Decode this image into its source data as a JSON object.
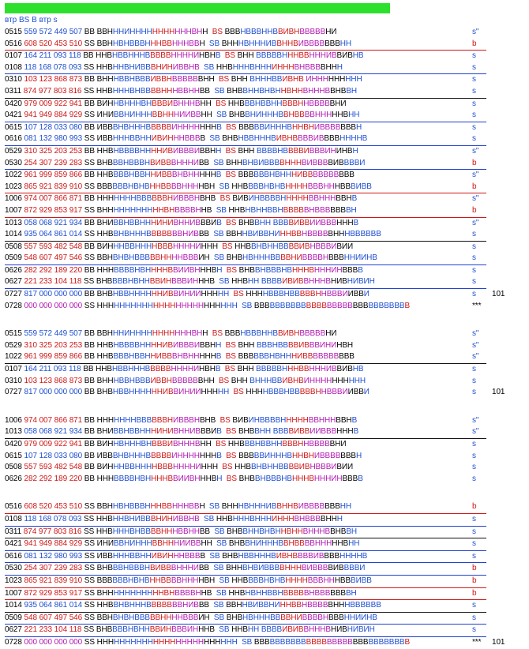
{
  "header": {
    "title": "втр BS B втр s"
  },
  "colors": {
    "bar": "#2ee02e",
    "blue": "#1f4fd0",
    "red": "#d01818",
    "magenta": "#b21ab2"
  },
  "groups": [
    {
      "lines": [
        {
          "id": "0515",
          "n": "559 572 449 507",
          "nc": "b",
          "t": "BB",
          "s": "ВВНННИНННННННННННВНН",
          "s2": "BS",
          "p": "ВВВНВВВННВВИВНВВВВВНИ",
          "tail": "s\"",
          "ul": false
        },
        {
          "id": "0516",
          "n": "608 520 453 510",
          "nc": "r",
          "t": "SS",
          "s": "ВВННВНВВВНННВВНННВВН",
          "s2": "SB",
          "p": "ВНННВНННИВВННВИВВВВВВВНН",
          "tail": "b",
          "ul": true,
          "ulc": "red"
        },
        {
          "id": "0107",
          "n": "164 211 093 118",
          "nc": "b",
          "t": "BB",
          "s": "ННВНВВНННВВВВВННННИНВНВ",
          "s2": "BS",
          "p": "ВНН ВВВВВНННВВНННИВВИВНВ",
          "tail": "s",
          "ul": false
        },
        {
          "id": "0108",
          "n": "118 168 078 093",
          "nc": "b",
          "t": "SS",
          "s": "ННВННВНИВВВНИНИВВНВ",
          "s2": "SB",
          "p": "ННВНННВНННИНННВНВВВВННН",
          "tail": "s",
          "ul": true,
          "ulc": "blue"
        },
        {
          "id": "0310",
          "n": "103 123 868 873",
          "nc": "r",
          "t": "BB",
          "s": "ВНННВВНВВВИВВНВВВВВВНН",
          "s2": "BS",
          "p": "ВНН ВНННВВИВНВ ИННННННННН",
          "tail": "s",
          "ul": false
        },
        {
          "id": "0311",
          "n": "874 977 803 816",
          "nc": "r",
          "t": "SS",
          "s": "ННВНННВНВВВВНННВВННВВ",
          "s2": "SB",
          "p": "ВНВВННВНВННВННВНННВВНВВН",
          "tail": "s",
          "ul": true,
          "ulc": "k"
        },
        {
          "id": "0420",
          "n": "979 009 922 941",
          "nc": "r",
          "t": "BB",
          "s": "ВИННВНННВНВВВИВНННВНН",
          "s2": "BS",
          "p": "ННВВВНВВННВВВННВВВВВНИ",
          "tail": "s",
          "ul": false
        },
        {
          "id": "0421",
          "n": "941 949 884 929",
          "nc": "r",
          "t": "SS",
          "s": "ИНИВВНИНННВВНННИИВВНН",
          "s2": "SB",
          "p": "ВНВВНИНННВВНВВВВНННННВНН",
          "tail": "s",
          "ul": true,
          "ulc": "blue"
        },
        {
          "id": "0615",
          "n": "107 128 033 080",
          "nc": "b",
          "t": "BB",
          "s": "ИВВВНВНННВВВВВИНННННННВ",
          "s2": "BS",
          "p": "ВВВВВИНННВННВНИВВВВВВВН",
          "tail": "s",
          "ul": false
        },
        {
          "id": "0616",
          "n": "081 132 980 993",
          "nc": "b",
          "t": "SS",
          "s": "ИВВНННВВННИВИНННВВВВ",
          "s2": "SB",
          "p": "ВНВНВВНННВИВНВВВВИВВВВННННВ",
          "tail": "s",
          "ul": true,
          "ulc": "blue"
        },
        {
          "id": "0529",
          "n": "310 325 203 253",
          "nc": "r",
          "t": "BB",
          "s": "ННВНВВВВННННИВИВВВИВВНН",
          "s2": "BS",
          "p": "ВНН ВВВВНВВВВИВВВИНИНВН",
          "tail": "s\"",
          "ul": false
        },
        {
          "id": "0530",
          "n": "254 307 239 283",
          "nc": "r",
          "t": "SS",
          "s": "ВНВВВНВВВНВИВВВНННИВВ",
          "s2": "SB",
          "p": "ВННВНВИВВВВНННВИВВВВИВВВВИ",
          "tail": "b",
          "ul": true,
          "ulc": "blue"
        },
        {
          "id": "1022",
          "n": "961 999 859 866",
          "nc": "r",
          "t": "BB",
          "s": "ННВВВВНВВННИВВВНВНННННВ",
          "s2": "BS",
          "p": "ВВВВВВНВНННИВВВВВВВВВВ",
          "tail": "s\"",
          "ul": false
        },
        {
          "id": "1023",
          "n": "865 921 839 910",
          "nc": "r",
          "t": "SS",
          "s": "ВВВВВВНВНВННВВВВННННВН",
          "s2": "SB",
          "p": "ННВВВВНВНВННННВВВНННВВВИВВ",
          "tail": "b",
          "ul": true,
          "ulc": "red"
        },
        {
          "id": "1006",
          "n": "974 007 866 871",
          "nc": "r",
          "t": "BB",
          "s": "НННННННВВВВВВНИВВВНВНВ",
          "s2": "BS",
          "p": "ВИВИНВВВВНННННВВНННВВНВ",
          "tail": "s\"",
          "ul": false
        },
        {
          "id": "1007",
          "n": "872 929 853 917",
          "nc": "r",
          "t": "SS",
          "s": "ВНННННННННННВНВВВВННВ",
          "s2": "SB",
          "p": "ННВНВННВВНВВВВВНВВВВВВВН",
          "tail": "b",
          "ul": true,
          "ulc": "red"
        },
        {
          "id": "1013",
          "n": "058 068 921 934",
          "nc": "b",
          "t": "BB",
          "s": "ВНИВВНВВНННИНИВННИВВВИВ",
          "s2": "BS",
          "p": "ВНВВНН ВВВВИВВИИВВВНННВ",
          "tail": "s\"",
          "ul": false
        },
        {
          "id": "1014",
          "n": "935 064 861 014",
          "nc": "b",
          "t": "SS",
          "s": "ННВВНВНННВВВВВВВНИВВВ",
          "s2": "SB",
          "p": "ВВННВИВВНИННВВНВВВВВНННВВВВВВ",
          "tail": "s",
          "ul": true,
          "ulc": "k"
        },
        {
          "id": "0508",
          "n": "557 593 482 548",
          "nc": "r",
          "t": "BB",
          "s": "ВИНННВВННННВВВННННИННН",
          "s2": "BS",
          "p": "ННВВНВННВВВВИВНВВВИВИИ",
          "tail": "s",
          "ul": false
        },
        {
          "id": "0509",
          "n": "548 607 497 546",
          "nc": "r",
          "t": "SS",
          "s": "ВВНВНВНВВВВВННННВВВИН",
          "s2": "SB",
          "p": "ВНВНВНННВВВВНИВВВВНВВВННИИНВ",
          "tail": "s",
          "ul": true,
          "ulc": "blue"
        },
        {
          "id": "0626",
          "n": "282 292 189 220",
          "nc": "r",
          "t": "BB",
          "s": "НННВВВВНВННННВВИИВНННВН",
          "s2": "BS",
          "p": "ВНВВНВВВНВНННВНННИНВВВВ",
          "tail": "s",
          "ul": false
        },
        {
          "id": "0627",
          "n": "221 233 104 118",
          "nc": "r",
          "t": "SS",
          "s": "ВНВВВВНВННВВИНВВВИНННВ",
          "s2": "SB",
          "p": "ННВНН ВВВВИВИВВНННВНИВНИВИН",
          "tail": "s",
          "ul": true,
          "ulc": "blue"
        },
        {
          "id": "0727",
          "n": "817 000 000 000",
          "nc": "b",
          "t": "BB",
          "s": "ВНВНВВННННННИВВИНИИННННН",
          "s2": "BS",
          "p": "ННННВВВНВВВВВННВВВИИВВИ",
          "tail": "s",
          "num": "101",
          "ul": false
        },
        {
          "id": "0728",
          "n": "000 000 000 000",
          "nc": "m",
          "t": "SS",
          "s": "ННННННННННННННННННННННННН",
          "s2": "SB",
          "p": "ВВВВВВВВВВВВВВВВВВВВВВВВВВВВВВ",
          "tail": "***",
          "ul": false
        }
      ]
    },
    {
      "lines": [
        {
          "id": "0515",
          "n": "559 572 449 507",
          "nc": "b",
          "t": "BB",
          "s": "ВВНННИНННННННННННВНН",
          "s2": "BS",
          "p": "ВВВНВВВННВВИВНВВВВВНИ",
          "tail": "s\"",
          "ul": false
        },
        {
          "id": "0529",
          "n": "310 325 203 253",
          "nc": "r",
          "t": "BB",
          "s": "ННВНВВВВННННИВИВВВИВВНН",
          "s2": "BS",
          "p": "ВНН ВВВНВВВВИВВВИНИНВН",
          "tail": "s\"",
          "ul": false
        },
        {
          "id": "1022",
          "n": "961 999 859 866",
          "nc": "r",
          "t": "BB",
          "s": "ННВВВВНВВННИВВВНВНННННВ",
          "s2": "BS",
          "p": "ВВВВВВНВНННИВВВВВВВВВВ",
          "tail": "s\"",
          "ul": true,
          "ulc": "k"
        },
        {
          "id": "0107",
          "n": "164 211 093 118",
          "nc": "b",
          "t": "BB",
          "s": "ННВНВВНННВВВВВННННИНВНВ",
          "s2": "BS",
          "p": "ВНН ВВВВВНННВВНННИВВИВНВ",
          "tail": "s",
          "ul": false
        },
        {
          "id": "0310",
          "n": "103 123 868 873",
          "nc": "r",
          "t": "BB",
          "s": "ВНННВВНВВВИВВНВВВВВВНН",
          "s2": "BS",
          "p": "ВНН ВНННВВИВНВИНННННННННН",
          "tail": "s",
          "ul": false
        },
        {
          "id": "0727",
          "n": "817 000 000 000",
          "nc": "b",
          "t": "BB",
          "s": "ВНВНВВННННННИВВИНИИННННН",
          "s2": "BS",
          "p": "ННННВВВНВВВВВННВВВИИВВИ",
          "tail": "s",
          "num": "101",
          "ul": false
        }
      ]
    },
    {
      "lines": [
        {
          "id": "1006",
          "n": "974 007 866 871",
          "nc": "r",
          "t": "BB",
          "s": "НННННННВВВВВВНИВВВНВНВ",
          "s2": "BS",
          "p": "ВИВИНВВВВНННННВВНННВВНВ",
          "tail": "s\"",
          "ul": false
        },
        {
          "id": "1013",
          "n": "058 068 921 934",
          "nc": "b",
          "t": "BB",
          "s": "ВНИВВНВВНННИНИВННИВВВИВ",
          "s2": "BS",
          "p": "ВНВВНН ВВВВИВВИИВВВНННВ",
          "tail": "s\"",
          "ul": true,
          "ulc": "m"
        },
        {
          "id": "0420",
          "n": "979 009 922 941",
          "nc": "r",
          "t": "BB",
          "s": "ВИННВНННВНВВВИВНННВНН",
          "s2": "BS",
          "p": "ННВВВНВВННВВВННВВВВВНИ",
          "tail": "s",
          "ul": false
        },
        {
          "id": "0615",
          "n": "107 128 033 080",
          "nc": "b",
          "t": "BB",
          "s": "ИВВВНВНННВВВВВИНННННННВ",
          "s2": "BS",
          "p": "ВВВВВИНННВННВНИВВВВВВВН",
          "tail": "s",
          "ul": false
        },
        {
          "id": "0508",
          "n": "557 593 482 548",
          "nc": "r",
          "t": "BB",
          "s": "ВИНННВВННННВВВННННИННН",
          "s2": "BS",
          "p": "ННВВНВННВВВВИВНВВВИВИИ",
          "tail": "s",
          "ul": false
        },
        {
          "id": "0626",
          "n": "282 292 189 220",
          "nc": "r",
          "t": "BB",
          "s": "НННВВВВНВННННВВИИВНННВН",
          "s2": "BS",
          "p": "ВНВВНВВВНВНННВНННИНВВВВ",
          "tail": "s",
          "ul": false
        }
      ]
    },
    {
      "lines": [
        {
          "id": "0516",
          "n": "608 520 453 510",
          "nc": "r",
          "t": "SS",
          "s": "ВВННВНВВВНННВВНННВВН",
          "s2": "SB",
          "p": "ВНННВНННИВВННВИВВВВВВВНН",
          "tail": "b",
          "ul": true,
          "ulc": "red"
        },
        {
          "id": "0108",
          "n": "118 168 078 093",
          "nc": "b",
          "t": "SS",
          "s": "ННВННВНИВВВНИНИВВНВ",
          "s2": "SB",
          "p": "ННВНННВНННИНННВНВВВВННН",
          "tail": "s",
          "ul": true,
          "ulc": "blue"
        },
        {
          "id": "0311",
          "n": "874 977 803 816",
          "nc": "r",
          "t": "SS",
          "s": "ННВНННВНВВВВНННВВННВВ",
          "s2": "SB",
          "p": "ВНВВННВНВННВННВНННВВНВВН",
          "tail": "s",
          "ul": true,
          "ulc": "k"
        },
        {
          "id": "0421",
          "n": "941 949 884 929",
          "nc": "r",
          "t": "SS",
          "s": "ИНИВВНИНННВВНННИИВВНН",
          "s2": "SB",
          "p": "ВНВВНИНННВВНВВВВНННННВНН",
          "tail": "s",
          "ul": true,
          "ulc": "blue"
        },
        {
          "id": "0616",
          "n": "081 132 980 993",
          "nc": "b",
          "t": "SS",
          "s": "ИВВНННВВННИВИНННВВВВ",
          "s2": "SB",
          "p": "ВНВНВВНННВИВНВВВВИВВВВННННВ",
          "tail": "s",
          "ul": true,
          "ulc": "blue"
        },
        {
          "id": "0530",
          "n": "254 307 239 283",
          "nc": "r",
          "t": "SS",
          "s": "ВНВВВНВВВНВИВВВНННИВВ",
          "s2": "SB",
          "p": "ВННВНВИВВВВНННВИВВВВИВВВВИ",
          "tail": "b",
          "ul": true,
          "ulc": "blue"
        },
        {
          "id": "1023",
          "n": "865 921 839 910",
          "nc": "r",
          "t": "SS",
          "s": "ВВВВВВНВНВННВВВВННННВН",
          "s2": "SB",
          "p": "ННВВВВНВНВННННВВВНННВВВИВВ",
          "tail": "b",
          "ul": true,
          "ulc": "red"
        },
        {
          "id": "1007",
          "n": "872 929 853 917",
          "nc": "r",
          "t": "SS",
          "s": "ВНННННННННННВНВВВВННВ",
          "s2": "SB",
          "p": "ННВНВННВВНВВВВВНВВВВВВВН",
          "tail": "b",
          "ul": true,
          "ulc": "red"
        },
        {
          "id": "1014",
          "n": "935 064 861 014",
          "nc": "b",
          "t": "SS",
          "s": "ННВВНВНННВВВВВВВНИВВВ",
          "s2": "SB",
          "p": "ВВННВИВВНИННВВНВВВВВНННВВВВВВ",
          "tail": "s",
          "ul": true,
          "ulc": "k"
        },
        {
          "id": "0509",
          "n": "548 607 497 546",
          "nc": "r",
          "t": "SS",
          "s": "ВВНВНВНВВВВВННННВВВИН",
          "s2": "SB",
          "p": "ВНВНВНННВВВВНИВВВВНВВВННИИНВ",
          "tail": "s",
          "ul": true,
          "ulc": "blue"
        },
        {
          "id": "0627",
          "n": "221 233 104 118",
          "nc": "r",
          "t": "SS",
          "s": "ВНВВВВНВННВВИНВВВИНННВ",
          "s2": "SB",
          "p": "ННВНН ВВВВИВИВВНННВНИВНИВИН",
          "tail": "s",
          "ul": true,
          "ulc": "blue"
        },
        {
          "id": "0728",
          "n": "000 000 000 000",
          "nc": "m",
          "t": "SS",
          "s": "ННННННННННННННННННННННННН",
          "s2": "SB",
          "p": "ВВВВВВВВВВВВВВВВВВВВВВВВВВВВВВ",
          "tail": "***",
          "num": "101",
          "ul": false
        }
      ]
    }
  ]
}
